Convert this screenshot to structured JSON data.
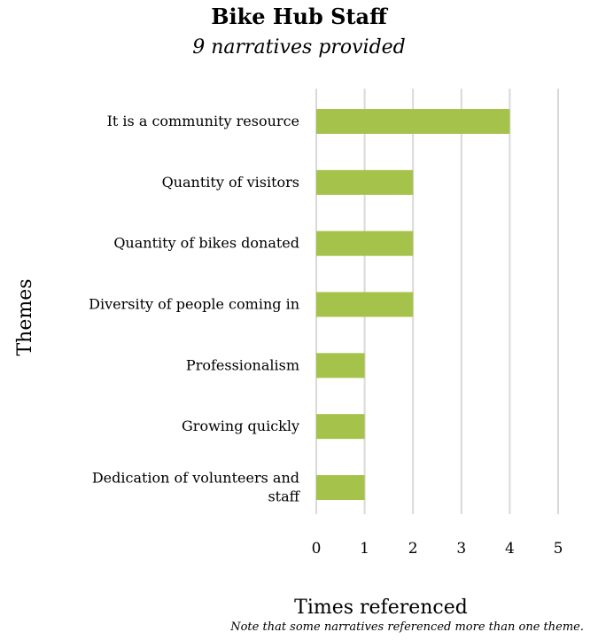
{
  "chart_data": {
    "type": "bar",
    "orientation": "horizontal",
    "title": "Bike Hub Staff",
    "subtitle": "9 narratives provided",
    "xlabel": "Times referenced",
    "ylabel": "Themes",
    "note": "Note that some narratives referenced more than one theme.",
    "categories": [
      "It is a community resource",
      "Quantity of visitors",
      "Quantity of bikes donated",
      "Diversity of people coming in",
      "Professionalism",
      "Growing quickly",
      "Dedication of volunteers and staff"
    ],
    "category_lines": [
      [
        "It is a community resource"
      ],
      [
        "Quantity of visitors"
      ],
      [
        "Quantity of bikes donated"
      ],
      [
        "Diversity of people coming in"
      ],
      [
        "Professionalism"
      ],
      [
        "Growing quickly"
      ],
      [
        "Dedication of volunteers and",
        "staff"
      ]
    ],
    "values": [
      4,
      2,
      2,
      2,
      1,
      1,
      1
    ],
    "xlim": [
      0,
      5
    ],
    "xticks": [
      "0",
      "1",
      "2",
      "3",
      "4",
      "5"
    ],
    "grid": true,
    "legend": "none",
    "bar_color": "#a5c24a",
    "grid_color": "#d9d9d9"
  }
}
